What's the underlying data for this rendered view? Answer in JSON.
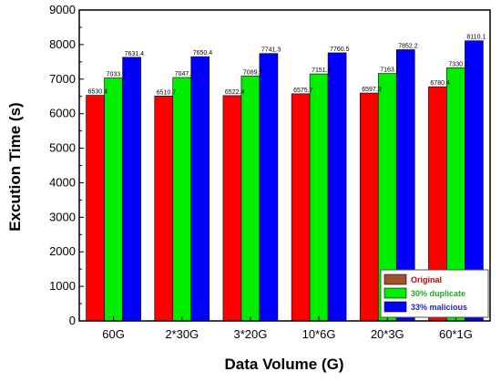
{
  "chart_data": {
    "type": "bar",
    "title": "",
    "xlabel": "Data Volume (G)",
    "ylabel": "Excution Time (s)",
    "ylim": [
      0,
      9000
    ],
    "yticks": [
      0,
      1000,
      2000,
      3000,
      4000,
      5000,
      6000,
      7000,
      8000,
      9000
    ],
    "categories": [
      "60G",
      "2*30G",
      "3*20G",
      "10*6G",
      "20*3G",
      "60*1G"
    ],
    "series": [
      {
        "name": "Original",
        "color": "#ff0000",
        "legend_color": "#a0522d",
        "values": [
          6530.4,
          6510.7,
          6522.4,
          6575.7,
          6597.3,
          6780.4
        ],
        "labels": [
          "6530.4",
          "6510.7",
          "6522.4",
          "6575.7",
          "6597.3",
          "6780.4"
        ]
      },
      {
        "name": "30% duplicate",
        "color": "#00ee00",
        "legend_color": "#00ee00",
        "values": [
          7033.1,
          7047.3,
          7089.5,
          7151.4,
          7163.1,
          7330.3
        ],
        "labels": [
          "7033.1",
          "7047.3",
          "7089.5",
          "7151.4",
          "7163.1",
          "7330.3"
        ]
      },
      {
        "name": "33% malicious",
        "color": "#0000ff",
        "legend_color": "#0000ff",
        "values": [
          7631.4,
          7650.4,
          7741.3,
          7760.5,
          7852.2,
          8110.1
        ],
        "labels": [
          "7631.4",
          "7650.4",
          "7741.3",
          "7760.5",
          "7852.2",
          "8110.1"
        ]
      }
    ],
    "legend_position": "bottom-right",
    "grid": false
  }
}
